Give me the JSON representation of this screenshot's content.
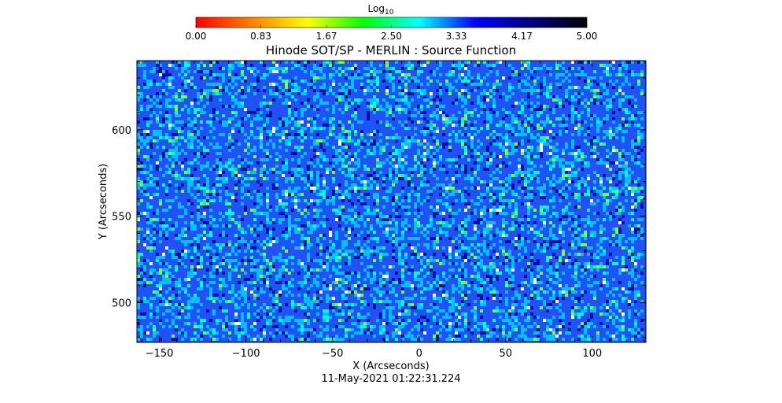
{
  "chart_data": {
    "type": "heatmap",
    "title": "Hinode SOT/SP - MERLIN : Source Function",
    "xlabel": "X (Arcseconds)",
    "ylabel": "Y (Arcseconds)",
    "xlim": [
      -163,
      131
    ],
    "ylim": [
      477,
      640
    ],
    "x_ticks": [
      -150,
      -100,
      -50,
      0,
      50,
      100
    ],
    "x_tick_labels": [
      "−150",
      "−100",
      "−50",
      "0",
      "50",
      "100"
    ],
    "y_ticks": [
      500,
      550,
      600
    ],
    "y_tick_labels": [
      "500",
      "550",
      "600"
    ],
    "colorbar": {
      "title": "Log",
      "title_subscript": "10",
      "range": [
        0,
        5
      ],
      "ticks": [
        0.0,
        0.83,
        1.67,
        2.5,
        3.33,
        4.17,
        5.0
      ],
      "tick_labels": [
        "0.00",
        "0.83",
        "1.67",
        "2.50",
        "3.33",
        "4.17",
        "5.00"
      ],
      "placement": "top",
      "colors": [
        "#ff0000",
        "#ff8000",
        "#ffff00",
        "#00ff00",
        "#00ffff",
        "#0000ff",
        "#000080",
        "#000000"
      ]
    },
    "field": {
      "dominant_color": "#1f5cff",
      "accent_colors": [
        "#00bfff",
        "#00ffd0",
        "#7cff3a",
        "#ffffff",
        "#0010a0"
      ]
    }
  },
  "footer": {
    "timestamp": "11-May-2021 01:22:31.224"
  }
}
